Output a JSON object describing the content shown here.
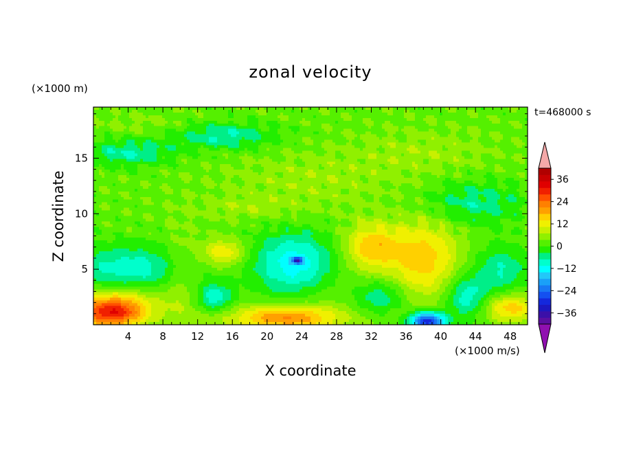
{
  "chart_data": {
    "type": "heatmap",
    "title": "zonal velocity",
    "xlabel": "X coordinate",
    "ylabel": "Z coordinate",
    "x_unit": "(×1000 m/s)",
    "y_unit": "(×1000 m)",
    "time_label": "t=468000 s",
    "xlim": [
      0,
      50
    ],
    "ylim": [
      0,
      19.6
    ],
    "x_ticks": [
      4,
      8,
      12,
      16,
      20,
      24,
      28,
      32,
      36,
      40,
      44,
      48
    ],
    "y_ticks": [
      5,
      10,
      15
    ],
    "colorbar": {
      "levels": [
        -42,
        -39,
        -36,
        -33,
        -30,
        -27,
        -24,
        -21,
        -18,
        -15,
        -12,
        -9,
        -6,
        -3,
        0,
        3,
        6,
        9,
        12,
        15,
        18,
        21,
        24,
        27,
        30,
        33,
        36,
        39,
        42
      ],
      "labels": [
        36,
        24,
        12,
        0,
        -12,
        -24,
        -36
      ],
      "colors": [
        "#5b0fa0",
        "#3b10a8",
        "#1c18c0",
        "#1428dc",
        "#1450f0",
        "#1878f4",
        "#1aa0f8",
        "#22c8f8",
        "#00ffff",
        "#00ffcc",
        "#00ee88",
        "#22ee00",
        "#55f000",
        "#90f000",
        "#c8f000",
        "#f0f000",
        "#ffd000",
        "#ffa000",
        "#ff8000",
        "#ff5000",
        "#f02000",
        "#e00000",
        "#c80000",
        "#b00000"
      ],
      "low_end": "#9010b0",
      "high_end": "#f4a8a8"
    },
    "field": {
      "background": -4,
      "features": [
        {
          "x": 2,
          "z": 1,
          "sx": 4,
          "sz": 1.3,
          "v": 22
        },
        {
          "x": 3,
          "z": 2.3,
          "sx": 5,
          "sz": 1.4,
          "v": 8
        },
        {
          "x": 4,
          "z": 5,
          "sx": 7,
          "sz": 2.2,
          "v": -10
        },
        {
          "x": 10,
          "z": 4,
          "sx": 2,
          "sz": 5,
          "v": 4
        },
        {
          "x": 14,
          "z": 2.5,
          "sx": 2,
          "sz": 1.2,
          "v": -10
        },
        {
          "x": 15,
          "z": 6.5,
          "sx": 2.5,
          "sz": 1.2,
          "v": 10
        },
        {
          "x": 23.5,
          "z": 5.5,
          "sx": 5,
          "sz": 2.8,
          "v": -14
        },
        {
          "x": 23.5,
          "z": 5.8,
          "sx": 0.6,
          "sz": 0.3,
          "v": -20
        },
        {
          "x": 22,
          "z": 0.6,
          "sx": 6,
          "sz": 1.1,
          "v": 16
        },
        {
          "x": 27,
          "z": 4,
          "sx": 4,
          "sz": 4,
          "v": 3
        },
        {
          "x": 32,
          "z": 7,
          "sx": 3,
          "sz": 2,
          "v": 12
        },
        {
          "x": 38,
          "z": 6,
          "sx": 4,
          "sz": 3.5,
          "v": 12
        },
        {
          "x": 33,
          "z": 2.5,
          "sx": 3,
          "sz": 1.5,
          "v": -8
        },
        {
          "x": 38.5,
          "z": 0.3,
          "sx": 2,
          "sz": 0.8,
          "v": -28
        },
        {
          "x": 43,
          "z": 2.5,
          "sx": 2.5,
          "sz": 2,
          "v": -10
        },
        {
          "x": 47,
          "z": 5,
          "sx": 3,
          "sz": 2.2,
          "v": -8
        },
        {
          "x": 48,
          "z": 1.5,
          "sx": 3,
          "sz": 1.2,
          "v": 12
        },
        {
          "x": 25,
          "z": 13,
          "sx": 10,
          "sz": 2.5,
          "v": 3
        },
        {
          "x": 38,
          "z": 15.5,
          "sx": 8,
          "sz": 2,
          "v": 3
        },
        {
          "x": 18,
          "z": 10.5,
          "sx": 6,
          "sz": 1,
          "v": 3
        },
        {
          "x": 6,
          "z": 18,
          "sx": 6,
          "sz": 1,
          "v": 2
        },
        {
          "x": 15,
          "z": 17,
          "sx": 6,
          "sz": 1.2,
          "v": -8
        },
        {
          "x": 4,
          "z": 15.5,
          "sx": 5,
          "sz": 1.2,
          "v": -8
        },
        {
          "x": 44,
          "z": 11,
          "sx": 6,
          "sz": 2,
          "v": -7
        }
      ]
    }
  }
}
